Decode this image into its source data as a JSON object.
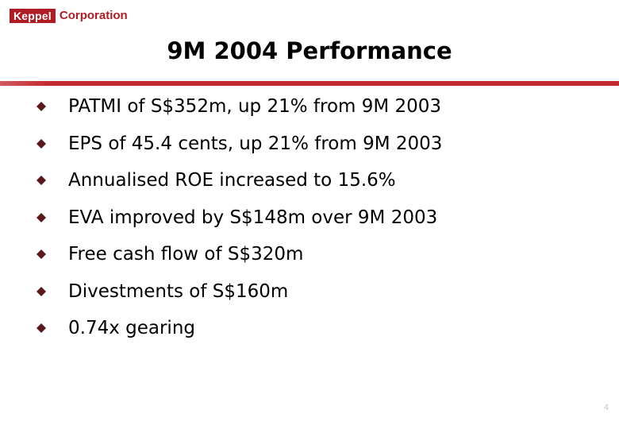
{
  "logo": {
    "brand": "Keppel",
    "suffix": "Corporation"
  },
  "slide": {
    "title": "9M 2004 Performance",
    "bullets": [
      "PATMI of S$352m, up 21% from 9M 2003",
      "EPS of 45.4 cents, up 21% from 9M 2003",
      "Annualised ROE increased to 15.6%",
      "EVA improved by S$148m over 9M 2003",
      "Free cash flow of S$320m",
      "Divestments of S$160m",
      "0.74x gearing"
    ],
    "page_number": "4"
  },
  "colors": {
    "accent": "#c42a31",
    "bullet": "#5a1a1c"
  },
  "icons": {
    "bullet": "diamond-icon"
  }
}
